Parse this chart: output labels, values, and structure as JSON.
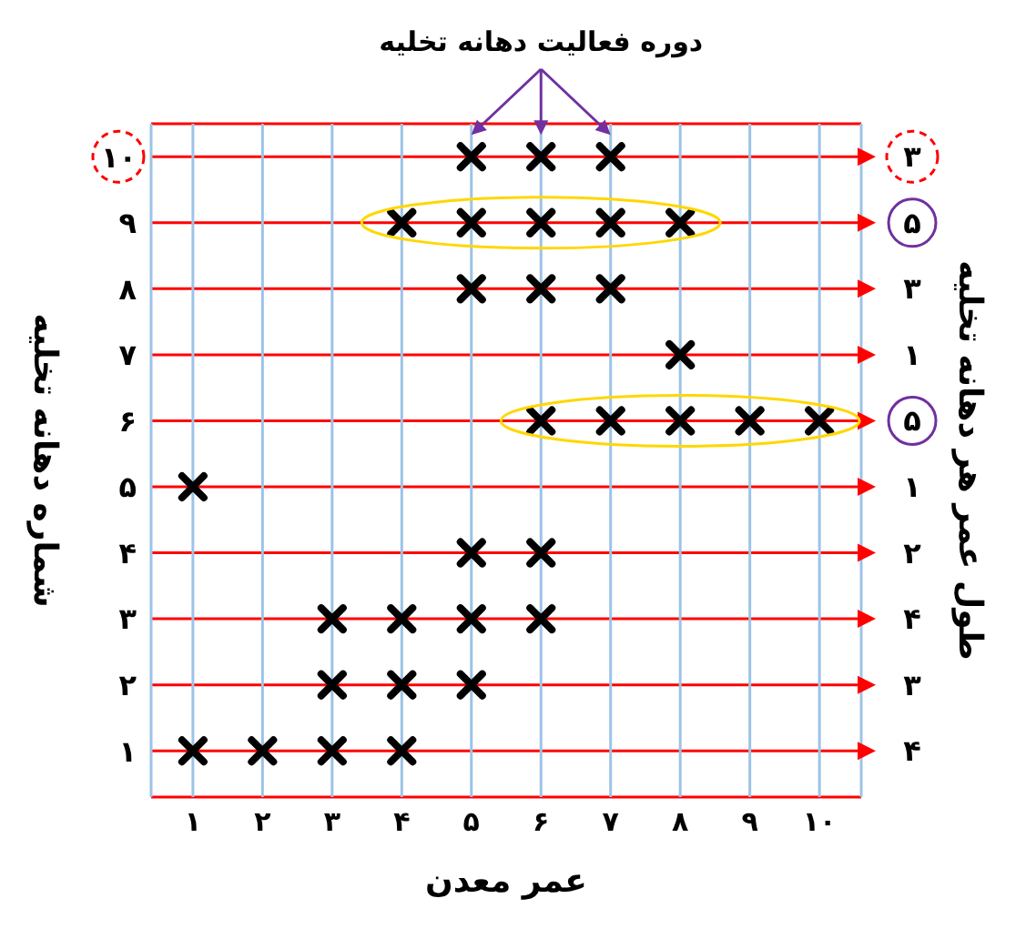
{
  "chart_data": {
    "type": "scatter",
    "xlabel": "عمر معدن",
    "ylabel": "شماره دهانه تخلیه",
    "y2label": "طول عمر هر دهانه تخلیه",
    "annotations": [
      "دوره فعالیت دهانه تخلیه",
      "۴",
      "۳",
      "۴",
      "۲",
      "۱",
      "۵",
      "۱",
      "۳",
      "۵",
      "۳"
    ],
    "x": [
      5,
      6,
      7,
      4,
      5,
      6,
      7,
      8,
      5,
      6,
      7,
      8,
      6,
      7,
      8,
      9,
      10,
      1,
      5,
      6,
      3,
      4,
      5,
      6,
      3,
      4,
      5,
      1,
      2,
      3,
      4
    ],
    "series": [
      {
        "color": "#000000",
        "values": [
          10,
          10,
          10,
          9,
          9,
          9,
          9,
          9,
          8,
          8,
          8,
          7,
          6,
          6,
          6,
          6,
          6,
          5,
          4,
          4,
          3,
          3,
          3,
          3,
          2,
          2,
          2,
          1,
          1,
          1,
          1
        ]
      }
    ],
    "marker": "cross",
    "grid": true,
    "xlim": [
      0.4,
      10.6
    ],
    "ylim": [
      0.3,
      10.5
    ],
    "xticks": [
      {
        "value": 1,
        "label": "۱"
      },
      {
        "value": 2,
        "label": "۲"
      },
      {
        "value": 3,
        "label": "۳"
      },
      {
        "value": 4,
        "label": "۴"
      },
      {
        "value": 5,
        "label": "۵"
      },
      {
        "value": 6,
        "label": "۶"
      },
      {
        "value": 7,
        "label": "۷"
      },
      {
        "value": 8,
        "label": "۸"
      },
      {
        "value": 9,
        "label": "۹"
      },
      {
        "value": 10,
        "label": "۱۰"
      }
    ],
    "yticks": [
      {
        "value": 1,
        "label": "۱"
      },
      {
        "value": 2,
        "label": "۲"
      },
      {
        "value": 3,
        "label": "۳"
      },
      {
        "value": 4,
        "label": "۴"
      },
      {
        "value": 5,
        "label": "۵"
      },
      {
        "value": 6,
        "label": "۶"
      },
      {
        "value": 7,
        "label": "۷"
      },
      {
        "value": 8,
        "label": "۸"
      },
      {
        "value": 9,
        "label": "۹"
      },
      {
        "value": 10,
        "label": "۱۰"
      }
    ]
  }
}
